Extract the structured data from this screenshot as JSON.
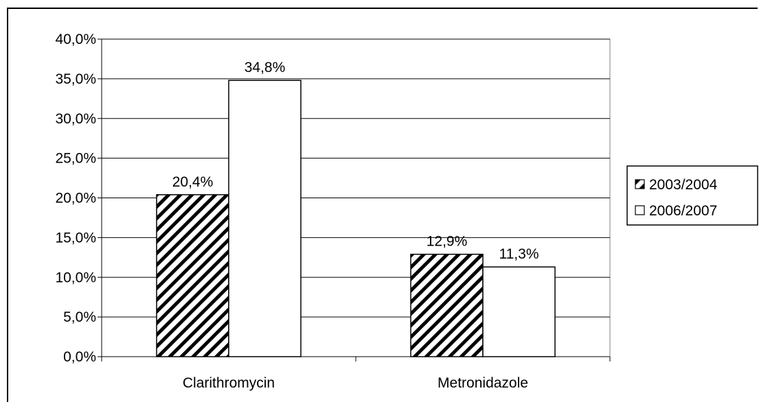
{
  "chart_data": {
    "type": "bar",
    "categories": [
      "Clarithromycin",
      "Metronidazole"
    ],
    "series": [
      {
        "name": "2003/2004",
        "values": [
          20.4,
          12.9
        ],
        "labels": [
          "20,4%",
          "12,9%"
        ],
        "fill": "hatched",
        "color": "#000000"
      },
      {
        "name": "2006/2007",
        "values": [
          34.8,
          11.3
        ],
        "labels": [
          "34,8%",
          "11,3%"
        ],
        "fill": "white",
        "color": "#ffffff"
      }
    ],
    "ylim": [
      0,
      40
    ],
    "yticks": [
      0,
      5,
      10,
      15,
      20,
      25,
      30,
      35,
      40
    ],
    "ytick_labels": [
      "0,0%",
      "5,0%",
      "10,0%",
      "15,0%",
      "20,0%",
      "25,0%",
      "30,0%",
      "35,0%",
      "40,0%"
    ],
    "grid": true,
    "legend_position": "right",
    "title": "",
    "xlabel": "",
    "ylabel": ""
  }
}
